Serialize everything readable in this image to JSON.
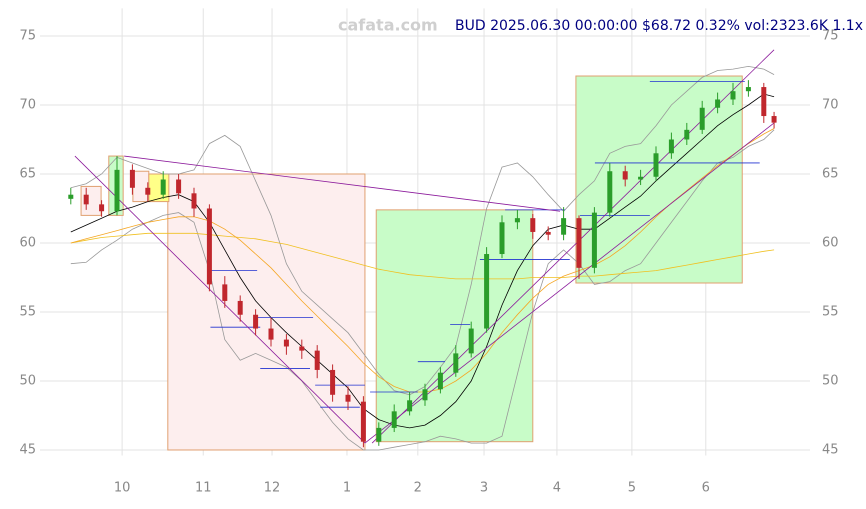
{
  "chart_data": {
    "type": "candlestick",
    "title": "BUD 2025.06.30 00:00:00 $68.72 0.32% vol:2323.6K 1.1x",
    "watermark": "cafata.com",
    "xlim": [
      -5,
      145
    ],
    "ylim": [
      44.6,
      77
    ],
    "xticks": [
      {
        "value": 11,
        "label": "10"
      },
      {
        "value": 26.8,
        "label": "11"
      },
      {
        "value": 40.2,
        "label": "12"
      },
      {
        "value": 54.8,
        "label": "1"
      },
      {
        "value": 68.6,
        "label": "2"
      },
      {
        "value": 81.5,
        "label": "3"
      },
      {
        "value": 95.7,
        "label": "4"
      },
      {
        "value": 110.3,
        "label": "5"
      },
      {
        "value": 124.7,
        "label": "6"
      }
    ],
    "yticks": [
      45,
      50,
      55,
      60,
      65,
      70,
      75
    ],
    "grid": true,
    "up_color": "#2a9d2a",
    "down_color": "#c0272d",
    "x": [
      1,
      4,
      7,
      10,
      13,
      16,
      19,
      22,
      25,
      28,
      31,
      34,
      37,
      40,
      43,
      46,
      49,
      52,
      55,
      58,
      61,
      64,
      67,
      70,
      73,
      76,
      79,
      82,
      85,
      88,
      91,
      94,
      97,
      100,
      103,
      106,
      109,
      112,
      115,
      118,
      121,
      124,
      127,
      130,
      133,
      136,
      138
    ],
    "open": [
      63.2,
      63.5,
      62.8,
      62.3,
      65.3,
      64.0,
      63.5,
      64.6,
      63.6,
      62.5,
      57.0,
      55.8,
      54.8,
      53.8,
      53.0,
      52.5,
      52.2,
      50.8,
      49.0,
      48.5,
      45.6,
      46.6,
      47.8,
      48.6,
      49.4,
      50.6,
      52.0,
      53.8,
      59.2,
      61.5,
      61.8,
      60.8,
      60.6,
      61.8,
      58.2,
      62.2,
      65.2,
      64.6,
      64.8,
      66.5,
      67.5,
      68.2,
      69.8,
      70.4,
      71.0,
      71.3,
      69.2
    ],
    "high": [
      64.0,
      64.0,
      63.1,
      66.3,
      65.7,
      64.4,
      65.2,
      65.0,
      64.0,
      62.8,
      57.6,
      56.2,
      55.2,
      54.6,
      53.4,
      53.0,
      52.6,
      51.2,
      49.6,
      48.9,
      47.0,
      48.3,
      49.2,
      49.8,
      51.0,
      52.6,
      54.3,
      59.7,
      62.0,
      62.4,
      62.1,
      61.2,
      62.6,
      62.0,
      62.6,
      65.8,
      65.6,
      65.3,
      67.0,
      68.0,
      68.7,
      70.3,
      70.9,
      71.6,
      71.8,
      71.6,
      69.5
    ],
    "low": [
      62.8,
      62.4,
      61.9,
      62.0,
      63.5,
      63.0,
      63.2,
      63.2,
      61.9,
      56.5,
      55.3,
      54.3,
      53.3,
      52.5,
      51.9,
      51.6,
      50.2,
      48.5,
      47.9,
      45.2,
      45.3,
      46.3,
      47.5,
      48.2,
      49.1,
      50.3,
      51.7,
      53.5,
      58.9,
      61.0,
      60.3,
      60.2,
      60.2,
      57.4,
      57.8,
      61.9,
      64.1,
      64.2,
      64.5,
      66.1,
      67.1,
      67.9,
      69.4,
      70.0,
      70.6,
      68.7,
      68.3
    ],
    "close": [
      63.5,
      62.8,
      62.3,
      65.3,
      64.0,
      63.5,
      64.6,
      63.6,
      62.5,
      57.0,
      55.8,
      54.8,
      53.8,
      53.0,
      52.5,
      52.2,
      50.8,
      49.0,
      48.5,
      45.6,
      46.6,
      47.8,
      48.6,
      49.4,
      50.6,
      52.0,
      53.8,
      59.2,
      61.5,
      61.8,
      60.8,
      60.6,
      61.8,
      58.2,
      62.2,
      65.2,
      64.6,
      64.8,
      66.5,
      67.5,
      68.2,
      69.8,
      70.4,
      71.0,
      71.3,
      69.2,
      68.72
    ],
    "zones": [
      {
        "x": [
          19.9,
          58.3
        ],
        "y": [
          45,
          65
        ],
        "fill": "#fdeeee",
        "stroke": "#e0a070"
      },
      {
        "x": [
          60.5,
          91.0
        ],
        "y": [
          45.6,
          62.4
        ],
        "fill": "#c8fcc8",
        "stroke": "#e0a070"
      },
      {
        "x": [
          99.4,
          131.8
        ],
        "y": [
          57.1,
          72.1
        ],
        "fill": "#c8fcc8",
        "stroke": "#e0a070"
      },
      {
        "x": [
          3.0,
          6.9
        ],
        "y": [
          62.0,
          64.1
        ],
        "fill": "#fdeeee",
        "stroke": "#e0a070"
      },
      {
        "x": [
          8.4,
          11.2
        ],
        "y": [
          62.0,
          66.3
        ],
        "fill": "#c8fcc8",
        "stroke": "#e0a070"
      },
      {
        "x": [
          13.1,
          16.2
        ],
        "y": [
          63.0,
          65.2
        ],
        "fill": "#fdeeee",
        "stroke": "#e0a070"
      },
      {
        "x": [
          16.2,
          20.1
        ],
        "y": [
          63.0,
          65.0
        ],
        "fill": "#ffff88",
        "stroke": "#e0a070"
      }
    ],
    "lines": [
      {
        "color": "#999999",
        "values": [
          64.0,
          64.3,
          65.0,
          66.2,
          65.8,
          65.4,
          65.0,
          65.0,
          65.3,
          67.2,
          67.8,
          67.0,
          64.5,
          62.0,
          58.5,
          56.5,
          55.5,
          54.5,
          53.5,
          52.0,
          50.5,
          49.3,
          49.0,
          49.6,
          51.0,
          52.5,
          57.0,
          62.5,
          65.5,
          65.8,
          64.8,
          63.5,
          62.3,
          63.5,
          64.5,
          66.5,
          67.0,
          67.2,
          68.5,
          70.0,
          71.0,
          72.0,
          72.5,
          72.6,
          72.8,
          72.6,
          72.2
        ]
      },
      {
        "color": "#999999",
        "values": [
          58.5,
          58.6,
          59.5,
          60.2,
          61.0,
          61.5,
          62.0,
          62.2,
          61.5,
          58.0,
          53.0,
          51.5,
          52.0,
          51.5,
          51.0,
          50.0,
          48.5,
          47.0,
          45.8,
          45.0,
          45.0,
          45.2,
          45.4,
          45.6,
          46.0,
          45.8,
          45.5,
          45.5,
          46.0,
          50.5,
          55.0,
          58.5,
          59.5,
          58.5,
          57.0,
          57.2,
          58.0,
          58.5,
          60.0,
          61.5,
          63.0,
          64.5,
          65.8,
          66.2,
          67.0,
          67.5,
          68.2
        ]
      },
      {
        "color": "#f0c020",
        "values": [
          60.0,
          60.2,
          60.4,
          60.5,
          60.6,
          60.7,
          60.7,
          60.7,
          60.7,
          60.6,
          60.5,
          60.4,
          60.3,
          60.1,
          59.9,
          59.6,
          59.3,
          59.0,
          58.7,
          58.4,
          58.1,
          57.9,
          57.7,
          57.6,
          57.5,
          57.4,
          57.4,
          57.4,
          57.4,
          57.4,
          57.5,
          57.5,
          57.5,
          57.6,
          57.6,
          57.7,
          57.8,
          57.9,
          58.0,
          58.2,
          58.4,
          58.6,
          58.8,
          59.0,
          59.2,
          59.4,
          59.5
        ]
      },
      {
        "color": "#f5a623",
        "values": [
          60,
          60.3,
          60.6,
          60.9,
          61.2,
          61.5,
          61.7,
          61.9,
          61.9,
          61.6,
          61.0,
          60.2,
          59.2,
          58.2,
          57.0,
          55.8,
          54.7,
          53.6,
          52.5,
          51.3,
          50.3,
          49.6,
          49.2,
          49.2,
          49.4,
          50.0,
          50.8,
          52.0,
          53.5,
          54.8,
          56.0,
          57.0,
          57.6,
          58.0,
          58.4,
          59.0,
          59.8,
          60.8,
          61.9,
          62.9,
          63.8,
          64.7,
          65.6,
          66.4,
          67.2,
          67.9,
          68.3
        ]
      },
      {
        "color": "#000000",
        "values": [
          60.8,
          61.3,
          61.8,
          62.3,
          62.6,
          63.0,
          63.3,
          63.5,
          63.0,
          61.5,
          59.5,
          57.5,
          55.8,
          54.6,
          53.5,
          52.5,
          51.5,
          50.5,
          49.5,
          48.0,
          47.2,
          46.8,
          46.6,
          46.8,
          47.5,
          48.5,
          50.0,
          52.5,
          55.5,
          58.0,
          59.8,
          61.0,
          61.3,
          61.0,
          61.0,
          61.8,
          62.6,
          63.4,
          64.5,
          65.5,
          66.5,
          67.5,
          68.5,
          69.3,
          70.0,
          70.8,
          70.6
        ]
      }
    ],
    "levels": [
      {
        "x": [
          28.2,
          37.3
        ],
        "y": 58.0,
        "color": "#2030d0"
      },
      {
        "x": [
          28.2,
          37.9
        ],
        "y": 53.9,
        "color": "#2030d0"
      },
      {
        "x": [
          37.3,
          48.2
        ],
        "y": 54.6,
        "color": "#2030d0"
      },
      {
        "x": [
          37.9,
          47.6
        ],
        "y": 50.9,
        "color": "#2030d0"
      },
      {
        "x": [
          48.6,
          58.3
        ],
        "y": 49.7,
        "color": "#2030d0"
      },
      {
        "x": [
          49.6,
          57.3
        ],
        "y": 48.1,
        "color": "#2030d0"
      },
      {
        "x": [
          59.3,
          68.6
        ],
        "y": 49.2,
        "color": "#2030d0"
      },
      {
        "x": [
          68.6,
          73.9
        ],
        "y": 51.4,
        "color": "#2030d0"
      },
      {
        "x": [
          74.9,
          78.8
        ],
        "y": 54.1,
        "color": "#2030d0"
      },
      {
        "x": [
          80.7,
          98.2
        ],
        "y": 58.8,
        "color": "#2030d0"
      },
      {
        "x": [
          85.6,
          97.3
        ],
        "y": 62.4,
        "color": "#2030d0"
      },
      {
        "x": [
          100.2,
          113.8
        ],
        "y": 62.0,
        "color": "#2030d0"
      },
      {
        "x": [
          103.1,
          135.2
        ],
        "y": 65.8,
        "color": "#2030d0"
      },
      {
        "x": [
          113.8,
          132.3
        ],
        "y": 71.7,
        "color": "#2030d0"
      }
    ],
    "trendlines": [
      {
        "x": [
          1.8,
          58.3
        ],
        "y": [
          66.3,
          45.5
        ],
        "color": "#8b1a9b"
      },
      {
        "x": [
          11.4,
          96.3
        ],
        "y": [
          66.3,
          62.3
        ],
        "color": "#8b1a9b"
      },
      {
        "x": [
          59.7,
          138
        ],
        "y": [
          45.5,
          74.0
        ],
        "color": "#8b1a9b"
      },
      {
        "x": [
          58.3,
          138
        ],
        "y": [
          45.5,
          68.7
        ],
        "color": "#8b1a9b"
      }
    ]
  }
}
